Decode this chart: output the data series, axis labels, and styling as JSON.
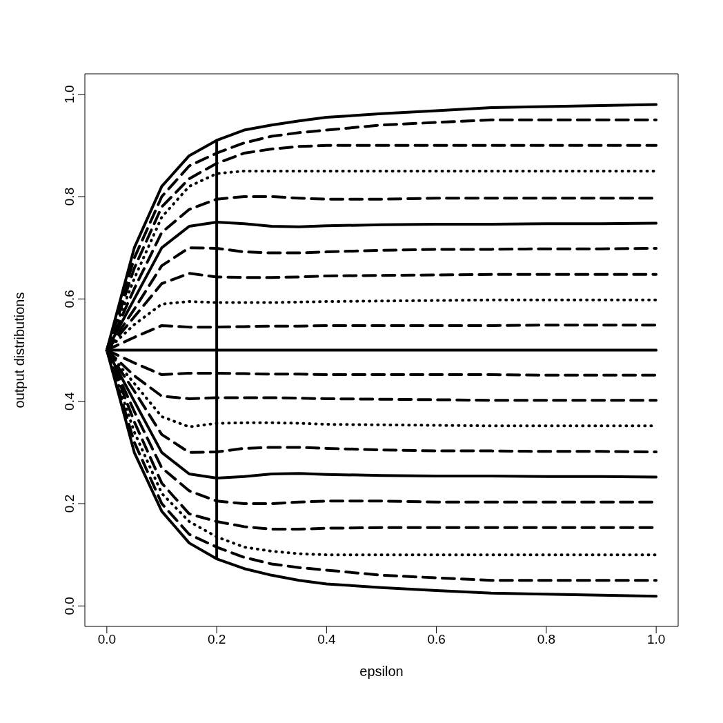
{
  "chart_data": {
    "type": "line",
    "xlabel": "epsilon",
    "ylabel": "output distributions",
    "x": [
      0,
      0.05,
      0.1,
      0.15,
      0.2,
      0.25,
      0.3,
      0.35,
      0.4,
      0.5,
      0.6,
      0.7,
      0.8,
      0.9,
      1.0
    ],
    "xlim": [
      -0.04,
      1.04
    ],
    "xticks": [
      {
        "value": 0,
        "label": "0.0"
      },
      0.2,
      0.4,
      0.6,
      0.8,
      {
        "value": 1,
        "label": "1.0"
      }
    ],
    "ylim": [
      -0.04,
      1.04
    ],
    "yticks": [
      {
        "value": 0,
        "label": "0.0"
      },
      0.2,
      0.4,
      0.6,
      0.8,
      {
        "value": 1,
        "label": "1.0"
      }
    ],
    "series": [
      {
        "color": "#000000",
        "line_style": "solid",
        "values": [
          0.5,
          0.7,
          0.82,
          0.88,
          0.91,
          0.93,
          0.94,
          0.948,
          0.955,
          0.962,
          0.968,
          0.974,
          0.976,
          0.978,
          0.98
        ]
      },
      {
        "color": "#000000",
        "line_style": "dashed",
        "values": [
          0.5,
          0.68,
          0.8,
          0.86,
          0.885,
          0.905,
          0.918,
          0.925,
          0.93,
          0.94,
          0.945,
          0.95,
          0.95,
          0.95,
          0.95
        ]
      },
      {
        "color": "#000000",
        "line_style": "dashed",
        "values": [
          0.5,
          0.66,
          0.78,
          0.835,
          0.865,
          0.885,
          0.893,
          0.898,
          0.9,
          0.9,
          0.9,
          0.9,
          0.9,
          0.9,
          0.9
        ]
      },
      {
        "color": "#000000",
        "line_style": "dotted",
        "values": [
          0.5,
          0.64,
          0.76,
          0.82,
          0.845,
          0.85,
          0.85,
          0.85,
          0.85,
          0.85,
          0.85,
          0.85,
          0.85,
          0.85,
          0.85
        ]
      },
      {
        "color": "#000000",
        "line_style": "dashed",
        "values": [
          0.5,
          0.62,
          0.73,
          0.775,
          0.795,
          0.8,
          0.8,
          0.797,
          0.795,
          0.795,
          0.797,
          0.797,
          0.797,
          0.797,
          0.797
        ]
      },
      {
        "color": "#000000",
        "line_style": "solid",
        "values": [
          0.5,
          0.6,
          0.7,
          0.742,
          0.75,
          0.747,
          0.742,
          0.741,
          0.743,
          0.745,
          0.746,
          0.746,
          0.747,
          0.747,
          0.748
        ]
      },
      {
        "color": "#000000",
        "line_style": "dashed",
        "values": [
          0.5,
          0.58,
          0.665,
          0.7,
          0.699,
          0.692,
          0.69,
          0.69,
          0.692,
          0.695,
          0.697,
          0.697,
          0.698,
          0.698,
          0.699
        ]
      },
      {
        "color": "#000000",
        "line_style": "dashed",
        "values": [
          0.5,
          0.565,
          0.63,
          0.65,
          0.643,
          0.642,
          0.642,
          0.643,
          0.645,
          0.646,
          0.647,
          0.648,
          0.648,
          0.648,
          0.648
        ]
      },
      {
        "color": "#000000",
        "line_style": "dotted",
        "values": [
          0.5,
          0.55,
          0.59,
          0.595,
          0.593,
          0.593,
          0.593,
          0.594,
          0.595,
          0.596,
          0.597,
          0.598,
          0.598,
          0.598,
          0.598
        ]
      },
      {
        "color": "#000000",
        "line_style": "dashed",
        "values": [
          0.5,
          0.525,
          0.548,
          0.545,
          0.545,
          0.546,
          0.547,
          0.547,
          0.548,
          0.548,
          0.548,
          0.548,
          0.549,
          0.549,
          0.549
        ]
      },
      {
        "color": "#000000",
        "line_style": "solid",
        "values": [
          0.5,
          0.5,
          0.5,
          0.5,
          0.5,
          0.5,
          0.5,
          0.5,
          0.5,
          0.5,
          0.5,
          0.5,
          0.5,
          0.5,
          0.5
        ]
      },
      {
        "color": "#000000",
        "line_style": "dashed",
        "values": [
          0.5,
          0.475,
          0.452,
          0.455,
          0.455,
          0.454,
          0.453,
          0.453,
          0.452,
          0.452,
          0.452,
          0.452,
          0.451,
          0.451,
          0.451
        ]
      },
      {
        "color": "#000000",
        "line_style": "dashed",
        "values": [
          0.5,
          0.45,
          0.41,
          0.405,
          0.407,
          0.407,
          0.407,
          0.406,
          0.405,
          0.404,
          0.403,
          0.402,
          0.402,
          0.402,
          0.402
        ]
      },
      {
        "color": "#000000",
        "line_style": "dotted",
        "values": [
          0.5,
          0.435,
          0.37,
          0.35,
          0.357,
          0.358,
          0.358,
          0.357,
          0.355,
          0.354,
          0.353,
          0.352,
          0.352,
          0.352,
          0.352
        ]
      },
      {
        "color": "#000000",
        "line_style": "dashed",
        "values": [
          0.5,
          0.42,
          0.335,
          0.3,
          0.301,
          0.308,
          0.31,
          0.31,
          0.308,
          0.305,
          0.303,
          0.303,
          0.302,
          0.302,
          0.301
        ]
      },
      {
        "color": "#000000",
        "line_style": "solid",
        "values": [
          0.5,
          0.4,
          0.3,
          0.258,
          0.25,
          0.253,
          0.258,
          0.259,
          0.257,
          0.255,
          0.254,
          0.254,
          0.253,
          0.253,
          0.252
        ]
      },
      {
        "color": "#000000",
        "line_style": "dashed",
        "values": [
          0.5,
          0.38,
          0.27,
          0.225,
          0.205,
          0.2,
          0.2,
          0.203,
          0.205,
          0.205,
          0.203,
          0.203,
          0.203,
          0.203,
          0.203
        ]
      },
      {
        "color": "#000000",
        "line_style": "dashed",
        "values": [
          0.5,
          0.36,
          0.24,
          0.18,
          0.165,
          0.155,
          0.15,
          0.15,
          0.152,
          0.153,
          0.153,
          0.153,
          0.153,
          0.153,
          0.153
        ]
      },
      {
        "color": "#000000",
        "line_style": "dotted",
        "values": [
          0.5,
          0.34,
          0.22,
          0.165,
          0.135,
          0.115,
          0.107,
          0.102,
          0.1,
          0.1,
          0.1,
          0.1,
          0.1,
          0.1,
          0.1
        ]
      },
      {
        "color": "#000000",
        "line_style": "dashed",
        "values": [
          0.5,
          0.32,
          0.2,
          0.14,
          0.115,
          0.095,
          0.082,
          0.075,
          0.07,
          0.06,
          0.055,
          0.05,
          0.05,
          0.05,
          0.05
        ]
      },
      {
        "color": "#000000",
        "line_style": "solid",
        "values": [
          0.5,
          0.3,
          0.185,
          0.123,
          0.092,
          0.073,
          0.06,
          0.05,
          0.043,
          0.036,
          0.03,
          0.025,
          0.023,
          0.021,
          0.019
        ]
      },
      {
        "color": "#000000",
        "line_style": "solid",
        "x": [
          0.2,
          0.2
        ],
        "values": [
          0.092,
          0.91
        ]
      }
    ]
  }
}
